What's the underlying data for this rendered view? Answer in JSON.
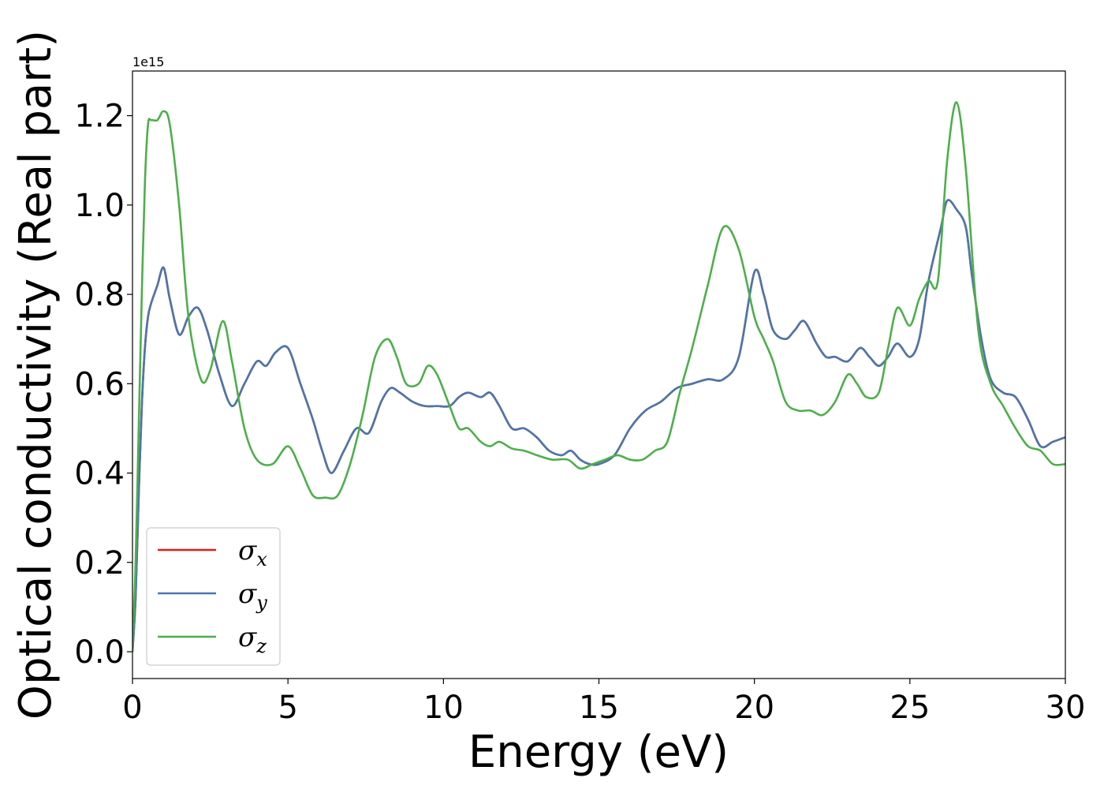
{
  "chart_data": {
    "type": "line",
    "xlabel": "Energy (eV)",
    "ylabel": "Optical conductivity (Real part)",
    "y_offset_text": "1e15",
    "xlim": [
      0,
      30
    ],
    "ylim": [
      -0.06,
      1.3
    ],
    "x_ticks": [
      0,
      5,
      10,
      15,
      20,
      25,
      30
    ],
    "y_ticks": [
      0.0,
      0.2,
      0.4,
      0.6,
      0.8,
      1.0,
      1.2
    ],
    "x_tick_labels": [
      "0",
      "5",
      "10",
      "15",
      "20",
      "25",
      "30"
    ],
    "y_tick_labels": [
      "0.0",
      "0.2",
      "0.4",
      "0.6",
      "0.8",
      "1.0",
      "1.2"
    ],
    "grid": false,
    "legend_position": "lower-left",
    "series": [
      {
        "name": "σx",
        "symbol": "σ",
        "subscript": "x",
        "color": "#e41a1c",
        "x": [
          0,
          0.1,
          0.2,
          0.3,
          0.4,
          0.5,
          0.6,
          0.8,
          1.0,
          1.2,
          1.5,
          1.8,
          2.1,
          2.4,
          2.8,
          3.2,
          3.6,
          4.0,
          4.3,
          4.6,
          5.0,
          5.4,
          5.8,
          6.1,
          6.4,
          6.8,
          7.2,
          7.6,
          8.0,
          8.3,
          8.6,
          9.0,
          9.4,
          9.8,
          10.2,
          10.5,
          10.8,
          11.2,
          11.5,
          11.8,
          12.2,
          12.6,
          13.0,
          13.4,
          13.8,
          14.1,
          14.4,
          14.7,
          15.0,
          15.5,
          16.0,
          16.5,
          17.0,
          17.5,
          18.0,
          18.5,
          19.0,
          19.5,
          20.0,
          20.3,
          20.6,
          21.0,
          21.3,
          21.6,
          22.0,
          22.3,
          22.6,
          23.0,
          23.4,
          23.7,
          24.0,
          24.3,
          24.6,
          25.0,
          25.3,
          25.6,
          26.0,
          26.2,
          26.5,
          26.8,
          27.0,
          27.3,
          27.6,
          28.0,
          28.4,
          28.8,
          29.2,
          29.6,
          30.0
        ],
        "values": [
          0.0,
          0.12,
          0.35,
          0.55,
          0.68,
          0.75,
          0.78,
          0.82,
          0.86,
          0.79,
          0.71,
          0.75,
          0.77,
          0.72,
          0.62,
          0.55,
          0.6,
          0.65,
          0.64,
          0.67,
          0.68,
          0.6,
          0.52,
          0.45,
          0.4,
          0.45,
          0.5,
          0.49,
          0.56,
          0.59,
          0.58,
          0.56,
          0.55,
          0.55,
          0.55,
          0.57,
          0.58,
          0.57,
          0.58,
          0.55,
          0.5,
          0.5,
          0.48,
          0.45,
          0.44,
          0.45,
          0.43,
          0.42,
          0.42,
          0.44,
          0.5,
          0.54,
          0.56,
          0.59,
          0.6,
          0.61,
          0.61,
          0.66,
          0.85,
          0.8,
          0.72,
          0.7,
          0.72,
          0.74,
          0.69,
          0.66,
          0.66,
          0.65,
          0.68,
          0.66,
          0.64,
          0.66,
          0.69,
          0.66,
          0.7,
          0.83,
          0.95,
          1.01,
          0.99,
          0.95,
          0.84,
          0.7,
          0.61,
          0.58,
          0.57,
          0.52,
          0.46,
          0.47,
          0.48
        ]
      },
      {
        "name": "σy",
        "symbol": "σ",
        "subscript": "y",
        "color": "#4a77ac",
        "x": [
          0,
          0.1,
          0.2,
          0.3,
          0.4,
          0.5,
          0.6,
          0.8,
          1.0,
          1.2,
          1.5,
          1.8,
          2.1,
          2.4,
          2.8,
          3.2,
          3.6,
          4.0,
          4.3,
          4.6,
          5.0,
          5.4,
          5.8,
          6.1,
          6.4,
          6.8,
          7.2,
          7.6,
          8.0,
          8.3,
          8.6,
          9.0,
          9.4,
          9.8,
          10.2,
          10.5,
          10.8,
          11.2,
          11.5,
          11.8,
          12.2,
          12.6,
          13.0,
          13.4,
          13.8,
          14.1,
          14.4,
          14.7,
          15.0,
          15.5,
          16.0,
          16.5,
          17.0,
          17.5,
          18.0,
          18.5,
          19.0,
          19.5,
          20.0,
          20.3,
          20.6,
          21.0,
          21.3,
          21.6,
          22.0,
          22.3,
          22.6,
          23.0,
          23.4,
          23.7,
          24.0,
          24.3,
          24.6,
          25.0,
          25.3,
          25.6,
          26.0,
          26.2,
          26.5,
          26.8,
          27.0,
          27.3,
          27.6,
          28.0,
          28.4,
          28.8,
          29.2,
          29.6,
          30.0
        ],
        "values": [
          0.0,
          0.12,
          0.35,
          0.55,
          0.68,
          0.75,
          0.78,
          0.82,
          0.86,
          0.79,
          0.71,
          0.75,
          0.77,
          0.72,
          0.62,
          0.55,
          0.6,
          0.65,
          0.64,
          0.67,
          0.68,
          0.6,
          0.52,
          0.45,
          0.4,
          0.45,
          0.5,
          0.49,
          0.56,
          0.59,
          0.58,
          0.56,
          0.55,
          0.55,
          0.55,
          0.57,
          0.58,
          0.57,
          0.58,
          0.55,
          0.5,
          0.5,
          0.48,
          0.45,
          0.44,
          0.45,
          0.43,
          0.42,
          0.42,
          0.44,
          0.5,
          0.54,
          0.56,
          0.59,
          0.6,
          0.61,
          0.61,
          0.66,
          0.85,
          0.8,
          0.72,
          0.7,
          0.72,
          0.74,
          0.69,
          0.66,
          0.66,
          0.65,
          0.68,
          0.66,
          0.64,
          0.66,
          0.69,
          0.66,
          0.7,
          0.83,
          0.95,
          1.01,
          0.99,
          0.95,
          0.84,
          0.7,
          0.61,
          0.58,
          0.57,
          0.52,
          0.46,
          0.47,
          0.48
        ]
      },
      {
        "name": "σz",
        "symbol": "σ",
        "subscript": "z",
        "color": "#4daf4a",
        "x": [
          0,
          0.1,
          0.2,
          0.3,
          0.4,
          0.5,
          0.6,
          0.8,
          1.0,
          1.2,
          1.5,
          1.8,
          2.2,
          2.5,
          2.9,
          3.2,
          3.6,
          4.0,
          4.5,
          5.0,
          5.4,
          5.8,
          6.2,
          6.6,
          7.0,
          7.4,
          7.8,
          8.2,
          8.5,
          8.8,
          9.2,
          9.5,
          9.8,
          10.2,
          10.5,
          10.8,
          11.2,
          11.5,
          11.8,
          12.2,
          12.6,
          13.0,
          13.5,
          14.0,
          14.4,
          14.8,
          15.2,
          15.6,
          16.0,
          16.4,
          16.8,
          17.2,
          17.6,
          18.0,
          18.5,
          19.0,
          19.5,
          20.0,
          20.3,
          20.6,
          21.0,
          21.4,
          21.8,
          22.2,
          22.6,
          23.0,
          23.3,
          23.6,
          24.0,
          24.3,
          24.6,
          25.0,
          25.3,
          25.6,
          25.9,
          26.2,
          26.5,
          26.8,
          27.2,
          27.6,
          28.0,
          28.4,
          28.8,
          29.2,
          29.6,
          30.0
        ],
        "values": [
          0.0,
          0.2,
          0.5,
          0.8,
          1.05,
          1.18,
          1.19,
          1.19,
          1.21,
          1.18,
          1.0,
          0.75,
          0.61,
          0.63,
          0.74,
          0.65,
          0.5,
          0.43,
          0.42,
          0.46,
          0.41,
          0.35,
          0.345,
          0.35,
          0.42,
          0.53,
          0.66,
          0.7,
          0.66,
          0.6,
          0.6,
          0.64,
          0.62,
          0.55,
          0.5,
          0.5,
          0.47,
          0.46,
          0.47,
          0.455,
          0.45,
          0.44,
          0.43,
          0.43,
          0.41,
          0.42,
          0.43,
          0.44,
          0.43,
          0.43,
          0.45,
          0.47,
          0.58,
          0.68,
          0.82,
          0.95,
          0.9,
          0.75,
          0.7,
          0.65,
          0.56,
          0.54,
          0.54,
          0.53,
          0.56,
          0.62,
          0.6,
          0.57,
          0.58,
          0.68,
          0.77,
          0.73,
          0.79,
          0.83,
          0.83,
          1.1,
          1.23,
          1.08,
          0.72,
          0.6,
          0.55,
          0.5,
          0.46,
          0.45,
          0.42,
          0.42
        ]
      }
    ]
  }
}
